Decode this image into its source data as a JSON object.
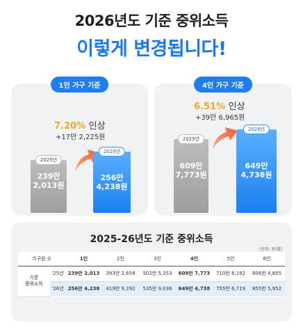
{
  "title_line1": "2026년도 기준 중위소득",
  "title_line2": "이렇게 변경됩니다!",
  "one_person": {
    "pill": "1인 가구 기준",
    "rate_pct": "7.20%",
    "rate_word": "인상",
    "diff": "+17만 2,225원",
    "bar_2025_tag": "2025년",
    "bar_2025_line1": "239만",
    "bar_2025_line2": "2,013원",
    "bar_2026_tag": "2026년",
    "bar_2026_line1": "256만",
    "bar_2026_line2": "4,238원"
  },
  "four_person": {
    "pill": "4인 가구 기준",
    "rate_pct": "6.51%",
    "rate_word": "인상",
    "diff": "+39만 6,965원",
    "bar_2025_tag": "2025년",
    "bar_2025_line1": "609만",
    "bar_2025_line2": "7,773원",
    "bar_2026_tag": "2026년",
    "bar_2026_line1": "649만",
    "bar_2026_line2": "4,738원"
  },
  "table": {
    "title": "2025-26년도 기준 중위소득",
    "unit": "(단위: 원/월)",
    "header_label": "가구원 수",
    "columns": [
      "1인",
      "2인",
      "3인",
      "4인",
      "5인",
      "6인"
    ],
    "row_header_line1": "기준",
    "row_header_line2": "중위소득",
    "row_2025_label": "'25년",
    "row_2025": [
      "239만 2,013",
      "393만 2,658",
      "502만 5,353",
      "609만 7,773",
      "710만 8,192",
      "806만 4,805"
    ],
    "row_2026_label": "'26년",
    "row_2026": [
      "256만 4,238",
      "419만 9,292",
      "535만 9,036",
      "649만 4,738",
      "755만 6,719",
      "855만 5,952"
    ]
  },
  "colors": {
    "accent_blue": "#1877f2",
    "accent_orange": "#f5a623",
    "arrow_orange": "#f26a3d",
    "bar_gray": "#a8a8a8",
    "bar_blue": "#2a8cf5"
  }
}
